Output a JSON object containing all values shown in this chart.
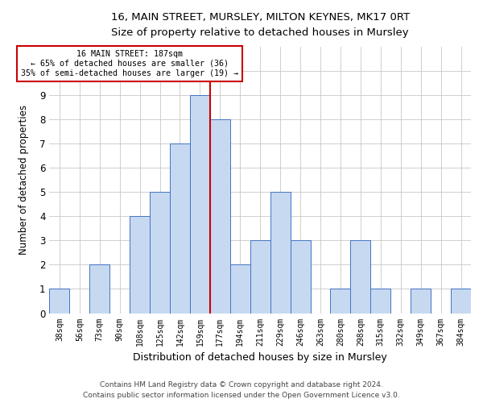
{
  "title1": "16, MAIN STREET, MURSLEY, MILTON KEYNES, MK17 0RT",
  "title2": "Size of property relative to detached houses in Mursley",
  "xlabel": "Distribution of detached houses by size in Mursley",
  "ylabel": "Number of detached properties",
  "categories": [
    "38sqm",
    "56sqm",
    "73sqm",
    "90sqm",
    "108sqm",
    "125sqm",
    "142sqm",
    "159sqm",
    "177sqm",
    "194sqm",
    "211sqm",
    "229sqm",
    "246sqm",
    "263sqm",
    "280sqm",
    "298sqm",
    "315sqm",
    "332sqm",
    "349sqm",
    "367sqm",
    "384sqm"
  ],
  "values": [
    1,
    0,
    2,
    0,
    4,
    5,
    7,
    9,
    8,
    2,
    3,
    5,
    3,
    0,
    1,
    3,
    1,
    0,
    1,
    0,
    1
  ],
  "bar_color": "#c6d9f0",
  "bar_edge_color": "#4472c4",
  "ref_line_index": 8,
  "ref_line_label": "16 MAIN STREET: 187sqm",
  "annotation_line1": "← 65% of detached houses are smaller (36)",
  "annotation_line2": "35% of semi-detached houses are larger (19) →",
  "box_color": "#cc0000",
  "ylim": [
    0,
    11
  ],
  "yticks": [
    0,
    1,
    2,
    3,
    4,
    5,
    6,
    7,
    8,
    9,
    10,
    11
  ],
  "footnote1": "Contains HM Land Registry data © Crown copyright and database right 2024.",
  "footnote2": "Contains public sector information licensed under the Open Government Licence v3.0."
}
